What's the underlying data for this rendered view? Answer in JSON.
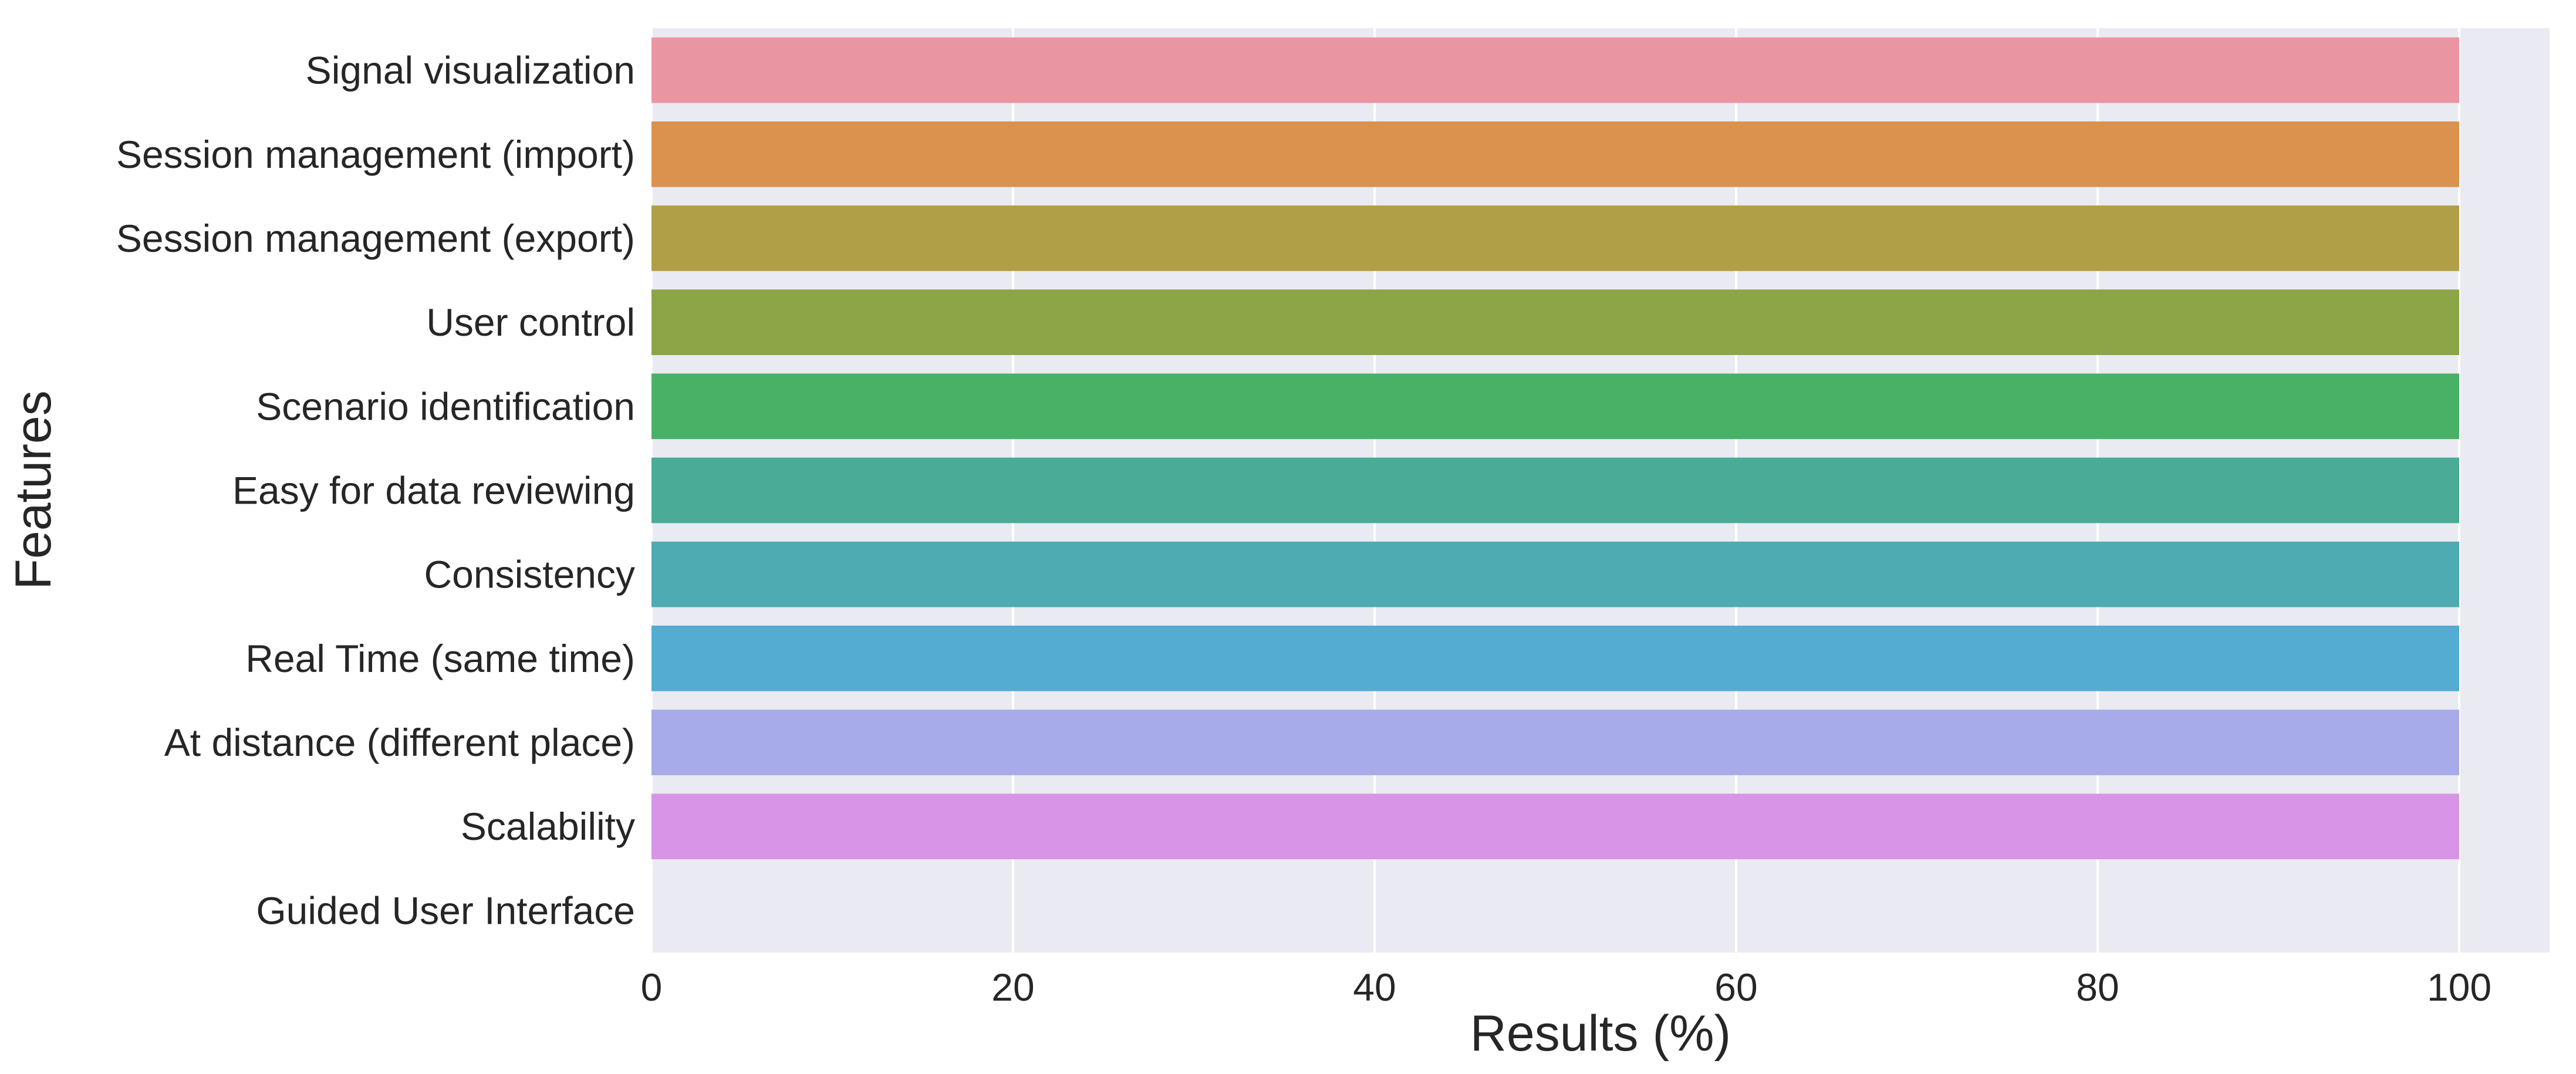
{
  "chart_data": {
    "type": "bar",
    "orientation": "horizontal",
    "title": "",
    "xlabel": "Results (%)",
    "ylabel": "Features",
    "xlim": [
      0,
      105
    ],
    "xticks": [
      0,
      20,
      40,
      60,
      80,
      100
    ],
    "grid": true,
    "categories": [
      "Signal visualization",
      "Session management (import)",
      "Session management (export)",
      "User control",
      "Scenario identification",
      "Easy for data reviewing",
      "Consistency",
      "Real Time (same time)",
      "At distance (different place)",
      "Scalability",
      "Guided User Interface"
    ],
    "values": [
      100,
      100,
      100,
      100,
      100,
      100,
      100,
      100,
      100,
      100,
      0
    ],
    "colors": [
      "#ea96a2",
      "#da924e",
      "#b19f48",
      "#8ba547",
      "#48b166",
      "#4aab97",
      "#4dabb1",
      "#54acd3",
      "#a8abe9",
      "#d894e6",
      "#e98bbd"
    ],
    "background": "#eaeaf2",
    "gridColor": "#ffffff"
  }
}
